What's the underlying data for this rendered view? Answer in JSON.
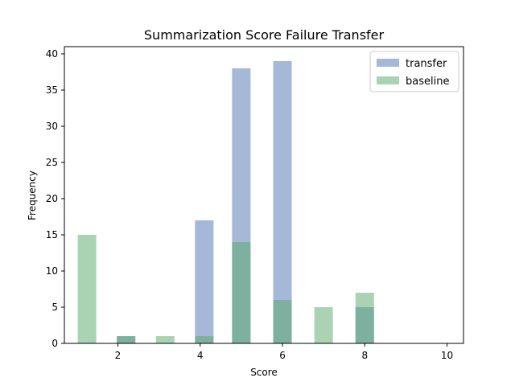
{
  "chart_data": {
    "type": "bar",
    "title": "Summarization Score Failure Transfer",
    "xlabel": "Score",
    "ylabel": "Frequency",
    "xlim": [
      0.7,
      10.4
    ],
    "ylim": [
      0,
      41
    ],
    "xticks": [
      2,
      4,
      6,
      8,
      10
    ],
    "yticks": [
      0,
      5,
      10,
      15,
      20,
      25,
      30,
      35,
      40
    ],
    "bar_width": 0.45,
    "legend_position": "top-right",
    "series": [
      {
        "name": "transfer",
        "color": "#4c72b0",
        "opacity": 0.5,
        "points": [
          {
            "x": 2.2,
            "value": 1
          },
          {
            "x": 4.1,
            "value": 17
          },
          {
            "x": 5.0,
            "value": 38
          },
          {
            "x": 6.0,
            "value": 39
          },
          {
            "x": 8.0,
            "value": 5
          }
        ]
      },
      {
        "name": "baseline",
        "color": "#55a868",
        "opacity": 0.5,
        "points": [
          {
            "x": 1.25,
            "value": 15
          },
          {
            "x": 2.2,
            "value": 1
          },
          {
            "x": 3.15,
            "value": 1
          },
          {
            "x": 4.1,
            "value": 1
          },
          {
            "x": 5.0,
            "value": 14
          },
          {
            "x": 6.0,
            "value": 6
          },
          {
            "x": 7.0,
            "value": 5
          },
          {
            "x": 8.0,
            "value": 7
          }
        ]
      }
    ]
  }
}
